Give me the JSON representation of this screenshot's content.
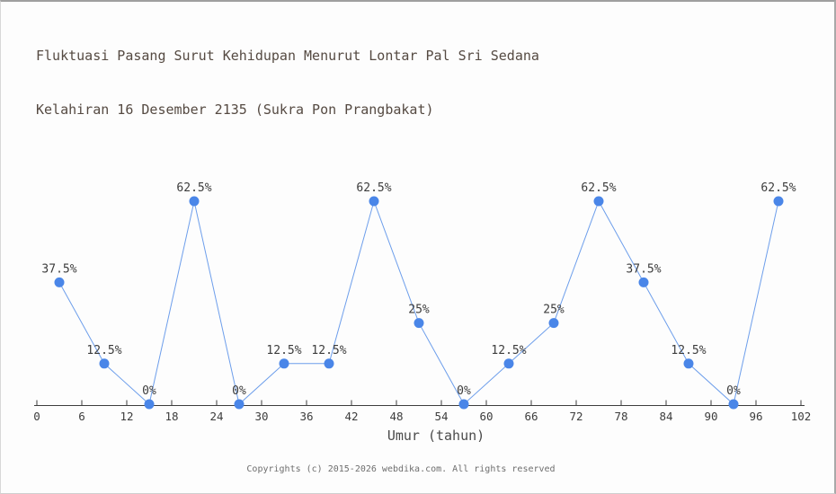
{
  "header": {
    "title_line1": "Fluktuasi Pasang Surut Kehidupan Menurut Lontar Pal Sri Sedana",
    "title_line2": "Kelahiran 16 Desember 2135 (Sukra Pon Prangbakat)"
  },
  "footer": {
    "text": "Copyrights (c) 2015-2026 webdika.com. All rights reserved"
  },
  "chart_data": {
    "type": "line",
    "title": "Fluktuasi Pasang Surut Kehidupan Menurut Lontar Pal Sri Sedana Kelahiran 16 Desember 2135 (Sukra Pon Prangbakat)",
    "x": [
      3,
      9,
      15,
      21,
      27,
      33,
      39,
      45,
      51,
      57,
      63,
      69,
      75,
      81,
      87,
      93,
      99
    ],
    "values": [
      37.5,
      12.5,
      0,
      62.5,
      0,
      12.5,
      12.5,
      62.5,
      25,
      0,
      12.5,
      25,
      62.5,
      37.5,
      12.5,
      0,
      62.5
    ],
    "point_labels": [
      "37.5%",
      "12.5%",
      "0%",
      "62.5%",
      "0%",
      "12.5%",
      "12.5%",
      "62.5%",
      "25%",
      "0%",
      "12.5%",
      "25%",
      "62.5%",
      "37.5%",
      "12.5%",
      "0%",
      "62.5%"
    ],
    "xlabel": "Umur (tahun)",
    "x_ticks": [
      0,
      6,
      12,
      18,
      24,
      30,
      36,
      42,
      48,
      54,
      60,
      66,
      72,
      78,
      84,
      90,
      96,
      102
    ],
    "xlim": [
      0,
      102
    ],
    "ylim": [
      0,
      100
    ],
    "grid": false,
    "legend": null,
    "marker_shape": "circle",
    "colors": {
      "line": "#6d9eeb",
      "marker": "#4a86e8",
      "axis": "#3d3d3d",
      "tick_label": "#3d3d3d",
      "point_label": "#3c3c3c"
    }
  }
}
